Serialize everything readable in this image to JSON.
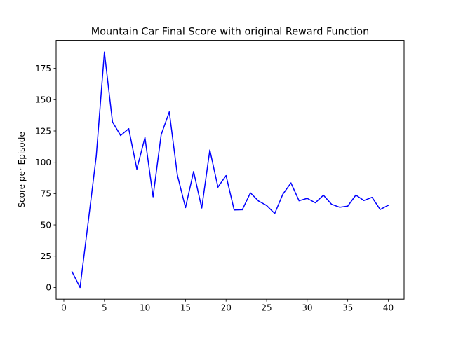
{
  "chart_data": {
    "type": "line",
    "title": "Mountain Car Final Score with original Reward Function",
    "xlabel": "",
    "ylabel": "Score per Episode",
    "xlim": [
      -0.95,
      41.95
    ],
    "ylim": [
      -9.4,
      197.4
    ],
    "x_ticks": [
      0,
      5,
      10,
      15,
      20,
      25,
      30,
      35,
      40
    ],
    "y_ticks": [
      0,
      25,
      50,
      75,
      100,
      125,
      150,
      175
    ],
    "grid": false,
    "series": [
      {
        "color": "#0000ff",
        "x": [
          1,
          2,
          3,
          4,
          5,
          6,
          7,
          8,
          9,
          10,
          11,
          12,
          13,
          14,
          15,
          16,
          17,
          18,
          19,
          20,
          21,
          22,
          23,
          24,
          25,
          26,
          27,
          28,
          29,
          30,
          31,
          32,
          33,
          34,
          35,
          36,
          37,
          38,
          39,
          40
        ],
        "values": [
          12.7,
          0,
          52,
          105,
          188,
          132.2,
          121.4,
          126.8,
          94.6,
          119.7,
          72.5,
          122,
          140.2,
          89.7,
          63.8,
          92.6,
          63.5,
          109.8,
          80.2,
          89.4,
          61.9,
          62.1,
          75.6,
          69.1,
          65.5,
          59.1,
          74.5,
          83.5,
          69.3,
          71.2,
          67.7,
          73.7,
          66.5,
          64.1,
          65,
          73.8,
          69.5,
          72,
          62.3,
          65.7
        ]
      }
    ]
  }
}
